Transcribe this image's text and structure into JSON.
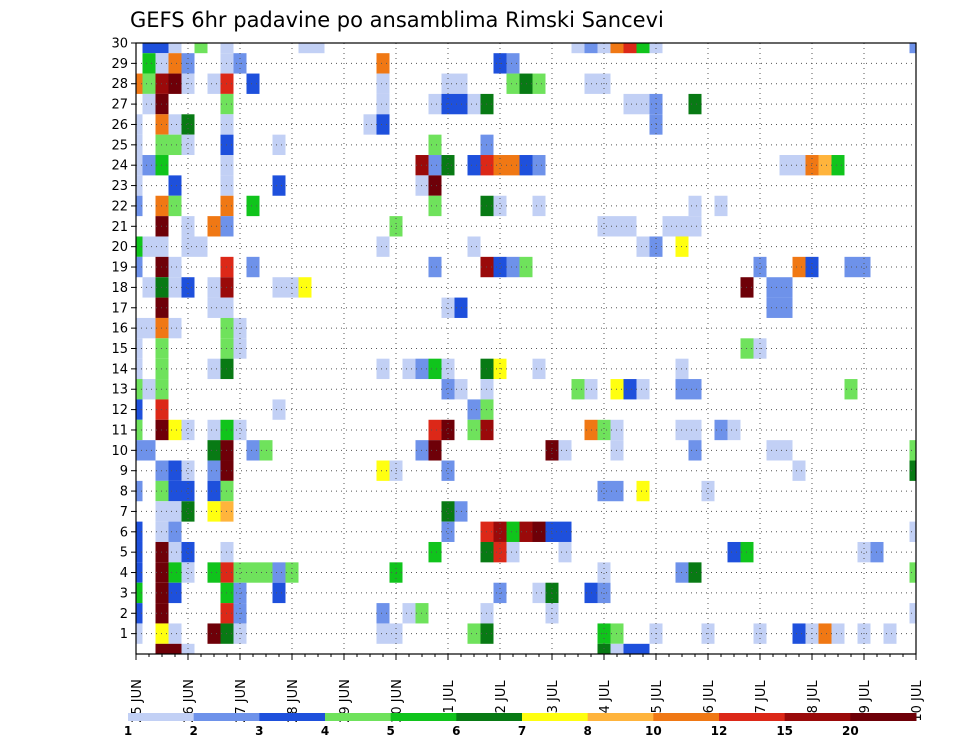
{
  "chart_data": {
    "type": "heatmap",
    "title": "GEFS 6hr padavine po ansamblima Rimski Sancevi",
    "xlabel": "",
    "ylabel": "",
    "x_tick_labels": [
      "25 JUN",
      "26 JUN",
      "27 JUN",
      "28 JUN",
      "29 JUN",
      "30 JUN",
      "01 JUL",
      "02 JUL",
      "03 JUL",
      "04 JUL",
      "05 JUL",
      "06 JUL",
      "07 JUL",
      "08 JUL",
      "09 JUL",
      "10 JUL"
    ],
    "x_step_hours": 6,
    "y_range": [
      1,
      30
    ],
    "y_tick_labels": [
      "1",
      "2",
      "3",
      "4",
      "5",
      "6",
      "7",
      "8",
      "9",
      "10",
      "11",
      "12",
      "13",
      "14",
      "15",
      "16",
      "17",
      "18",
      "19",
      "20",
      "21",
      "22",
      "23",
      "24",
      "25",
      "26",
      "27",
      "28",
      "29",
      "30"
    ],
    "grid": true,
    "colorbar": {
      "levels": [
        1,
        1.5,
        2,
        2.5,
        3,
        3.5,
        4,
        4.5,
        5,
        5.5,
        6,
        6.5,
        7,
        7.5,
        8,
        9,
        10,
        11,
        12,
        13.5,
        15,
        17.5,
        20,
        22.5
      ],
      "labels": [
        "1",
        "2",
        "3",
        "4",
        "5",
        "6",
        "7",
        "8",
        "10",
        "12",
        "15",
        "20"
      ],
      "colors": [
        "#c2d0f5",
        "#6e92ea",
        "#1e50dc",
        "#6fe25c",
        "#10c41c",
        "#087a14",
        "#ffff10",
        "#ffb43c",
        "#f07814",
        "#dc2818",
        "#9a0a0a",
        "#6e0008"
      ]
    },
    "cells": [
      [
        30,
        1,
        3
      ],
      [
        30,
        2,
        3
      ],
      [
        30,
        3,
        1
      ],
      [
        30,
        5,
        4
      ],
      [
        30,
        7,
        1
      ],
      [
        30,
        13,
        1
      ],
      [
        30,
        14,
        1
      ],
      [
        30,
        34,
        1
      ],
      [
        30,
        35,
        2
      ],
      [
        30,
        36,
        1
      ],
      [
        30,
        37,
        9
      ],
      [
        30,
        38,
        10
      ],
      [
        30,
        39,
        5
      ],
      [
        30,
        40,
        1
      ],
      [
        30,
        60,
        2
      ],
      [
        29,
        1,
        5
      ],
      [
        29,
        2,
        1
      ],
      [
        29,
        3,
        9
      ],
      [
        29,
        4,
        2
      ],
      [
        29,
        7,
        1
      ],
      [
        29,
        8,
        2
      ],
      [
        29,
        19,
        9
      ],
      [
        29,
        28,
        3
      ],
      [
        29,
        29,
        2
      ],
      [
        28,
        0,
        9
      ],
      [
        28,
        1,
        4
      ],
      [
        28,
        2,
        11
      ],
      [
        28,
        3,
        12
      ],
      [
        28,
        4,
        1
      ],
      [
        28,
        6,
        1
      ],
      [
        28,
        7,
        10
      ],
      [
        28,
        9,
        3
      ],
      [
        28,
        19,
        1
      ],
      [
        28,
        24,
        1
      ],
      [
        28,
        25,
        1
      ],
      [
        28,
        29,
        4
      ],
      [
        28,
        30,
        6
      ],
      [
        28,
        31,
        4
      ],
      [
        28,
        35,
        1
      ],
      [
        28,
        36,
        1
      ],
      [
        27,
        1,
        1
      ],
      [
        27,
        2,
        12
      ],
      [
        27,
        7,
        4
      ],
      [
        27,
        19,
        1
      ],
      [
        27,
        23,
        1
      ],
      [
        27,
        24,
        3
      ],
      [
        27,
        25,
        3
      ],
      [
        27,
        26,
        1
      ],
      [
        27,
        27,
        6
      ],
      [
        27,
        38,
        1
      ],
      [
        27,
        39,
        1
      ],
      [
        27,
        40,
        2
      ],
      [
        27,
        43,
        6
      ],
      [
        26,
        0,
        1
      ],
      [
        26,
        2,
        9
      ],
      [
        26,
        3,
        1
      ],
      [
        26,
        4,
        6
      ],
      [
        26,
        7,
        1
      ],
      [
        26,
        18,
        1
      ],
      [
        26,
        19,
        3
      ],
      [
        26,
        40,
        2
      ],
      [
        25,
        0,
        1
      ],
      [
        25,
        2,
        4
      ],
      [
        25,
        3,
        4
      ],
      [
        25,
        4,
        1
      ],
      [
        25,
        7,
        3
      ],
      [
        25,
        11,
        1
      ],
      [
        25,
        23,
        4
      ],
      [
        25,
        27,
        2
      ],
      [
        24,
        0,
        1
      ],
      [
        24,
        1,
        2
      ],
      [
        24,
        2,
        5
      ],
      [
        24,
        7,
        1
      ],
      [
        24,
        22,
        11
      ],
      [
        24,
        23,
        2
      ],
      [
        24,
        24,
        6
      ],
      [
        24,
        26,
        3
      ],
      [
        24,
        27,
        10
      ],
      [
        24,
        28,
        9
      ],
      [
        24,
        29,
        9
      ],
      [
        24,
        30,
        3
      ],
      [
        24,
        31,
        2
      ],
      [
        24,
        50,
        1
      ],
      [
        24,
        51,
        1
      ],
      [
        24,
        52,
        9
      ],
      [
        24,
        53,
        8
      ],
      [
        24,
        54,
        5
      ],
      [
        23,
        0,
        1
      ],
      [
        23,
        3,
        3
      ],
      [
        23,
        7,
        1
      ],
      [
        23,
        11,
        3
      ],
      [
        23,
        22,
        1
      ],
      [
        23,
        23,
        12
      ],
      [
        22,
        0,
        2
      ],
      [
        22,
        2,
        9
      ],
      [
        22,
        3,
        4
      ],
      [
        22,
        7,
        9
      ],
      [
        22,
        9,
        5
      ],
      [
        22,
        23,
        4
      ],
      [
        22,
        27,
        6
      ],
      [
        22,
        28,
        1
      ],
      [
        22,
        31,
        1
      ],
      [
        22,
        43,
        1
      ],
      [
        22,
        45,
        1
      ],
      [
        21,
        2,
        12
      ],
      [
        21,
        4,
        1
      ],
      [
        21,
        6,
        9
      ],
      [
        21,
        7,
        2
      ],
      [
        21,
        20,
        4
      ],
      [
        21,
        36,
        1
      ],
      [
        21,
        37,
        1
      ],
      [
        21,
        38,
        1
      ],
      [
        21,
        41,
        1
      ],
      [
        21,
        42,
        1
      ],
      [
        21,
        43,
        1
      ],
      [
        20,
        0,
        5
      ],
      [
        20,
        1,
        1
      ],
      [
        20,
        2,
        1
      ],
      [
        20,
        4,
        1
      ],
      [
        20,
        5,
        1
      ],
      [
        20,
        19,
        1
      ],
      [
        20,
        26,
        1
      ],
      [
        20,
        39,
        1
      ],
      [
        20,
        40,
        2
      ],
      [
        20,
        42,
        7
      ],
      [
        19,
        0,
        2
      ],
      [
        19,
        2,
        12
      ],
      [
        19,
        3,
        1
      ],
      [
        19,
        7,
        10
      ],
      [
        19,
        9,
        2
      ],
      [
        19,
        23,
        2
      ],
      [
        19,
        27,
        11
      ],
      [
        19,
        28,
        3
      ],
      [
        19,
        29,
        2
      ],
      [
        19,
        30,
        4
      ],
      [
        19,
        48,
        2
      ],
      [
        19,
        51,
        9
      ],
      [
        19,
        52,
        3
      ],
      [
        19,
        55,
        2
      ],
      [
        19,
        56,
        2
      ],
      [
        18,
        1,
        1
      ],
      [
        18,
        2,
        6
      ],
      [
        18,
        3,
        1
      ],
      [
        18,
        4,
        3
      ],
      [
        18,
        6,
        1
      ],
      [
        18,
        7,
        11
      ],
      [
        18,
        11,
        1
      ],
      [
        18,
        12,
        1
      ],
      [
        18,
        13,
        7
      ],
      [
        18,
        47,
        12
      ],
      [
        18,
        49,
        2
      ],
      [
        18,
        50,
        2
      ],
      [
        17,
        2,
        12
      ],
      [
        17,
        6,
        1
      ],
      [
        17,
        7,
        1
      ],
      [
        17,
        24,
        1
      ],
      [
        17,
        25,
        3
      ],
      [
        17,
        49,
        2
      ],
      [
        17,
        50,
        2
      ],
      [
        16,
        0,
        1
      ],
      [
        16,
        1,
        1
      ],
      [
        16,
        2,
        9
      ],
      [
        16,
        3,
        1
      ],
      [
        16,
        7,
        4
      ],
      [
        16,
        8,
        1
      ],
      [
        15,
        0,
        1
      ],
      [
        15,
        2,
        4
      ],
      [
        15,
        7,
        4
      ],
      [
        15,
        8,
        1
      ],
      [
        15,
        47,
        4
      ],
      [
        15,
        48,
        1
      ],
      [
        14,
        0,
        1
      ],
      [
        14,
        2,
        4
      ],
      [
        14,
        6,
        1
      ],
      [
        14,
        7,
        6
      ],
      [
        14,
        19,
        1
      ],
      [
        14,
        21,
        1
      ],
      [
        14,
        22,
        2
      ],
      [
        14,
        23,
        5
      ],
      [
        14,
        24,
        1
      ],
      [
        14,
        27,
        6
      ],
      [
        14,
        28,
        7
      ],
      [
        14,
        31,
        1
      ],
      [
        14,
        42,
        1
      ],
      [
        13,
        0,
        4
      ],
      [
        13,
        1,
        1
      ],
      [
        13,
        2,
        4
      ],
      [
        13,
        24,
        2
      ],
      [
        13,
        25,
        1
      ],
      [
        13,
        27,
        1
      ],
      [
        13,
        34,
        4
      ],
      [
        13,
        35,
        1
      ],
      [
        13,
        37,
        7
      ],
      [
        13,
        38,
        3
      ],
      [
        13,
        39,
        1
      ],
      [
        13,
        42,
        2
      ],
      [
        13,
        43,
        2
      ],
      [
        13,
        55,
        4
      ],
      [
        12,
        0,
        3
      ],
      [
        12,
        2,
        10
      ],
      [
        12,
        11,
        1
      ],
      [
        12,
        26,
        2
      ],
      [
        12,
        27,
        4
      ],
      [
        11,
        0,
        4
      ],
      [
        11,
        2,
        12
      ],
      [
        11,
        3,
        7
      ],
      [
        11,
        4,
        1
      ],
      [
        11,
        6,
        1
      ],
      [
        11,
        7,
        5
      ],
      [
        11,
        8,
        1
      ],
      [
        11,
        23,
        10
      ],
      [
        11,
        24,
        12
      ],
      [
        11,
        26,
        4
      ],
      [
        11,
        27,
        11
      ],
      [
        11,
        35,
        9
      ],
      [
        11,
        36,
        4
      ],
      [
        11,
        37,
        1
      ],
      [
        11,
        42,
        1
      ],
      [
        11,
        43,
        1
      ],
      [
        11,
        45,
        2
      ],
      [
        11,
        46,
        1
      ],
      [
        10,
        0,
        2
      ],
      [
        10,
        1,
        2
      ],
      [
        10,
        6,
        6
      ],
      [
        10,
        7,
        12
      ],
      [
        10,
        9,
        2
      ],
      [
        10,
        10,
        4
      ],
      [
        10,
        22,
        2
      ],
      [
        10,
        23,
        12
      ],
      [
        10,
        32,
        12
      ],
      [
        10,
        33,
        1
      ],
      [
        10,
        37,
        1
      ],
      [
        10,
        43,
        2
      ],
      [
        10,
        49,
        1
      ],
      [
        10,
        50,
        1
      ],
      [
        10,
        60,
        4
      ],
      [
        9,
        2,
        2
      ],
      [
        9,
        3,
        3
      ],
      [
        9,
        4,
        1
      ],
      [
        9,
        6,
        2
      ],
      [
        9,
        7,
        12
      ],
      [
        9,
        19,
        7
      ],
      [
        9,
        20,
        1
      ],
      [
        9,
        24,
        2
      ],
      [
        9,
        51,
        1
      ],
      [
        9,
        60,
        6
      ],
      [
        8,
        0,
        2
      ],
      [
        8,
        2,
        4
      ],
      [
        8,
        3,
        3
      ],
      [
        8,
        4,
        3
      ],
      [
        8,
        6,
        3
      ],
      [
        8,
        7,
        4
      ],
      [
        8,
        36,
        2
      ],
      [
        8,
        37,
        2
      ],
      [
        8,
        39,
        7
      ],
      [
        8,
        44,
        1
      ],
      [
        7,
        2,
        1
      ],
      [
        7,
        3,
        1
      ],
      [
        7,
        4,
        6
      ],
      [
        7,
        6,
        7
      ],
      [
        7,
        7,
        8
      ],
      [
        7,
        24,
        6
      ],
      [
        7,
        25,
        2
      ],
      [
        6,
        0,
        3
      ],
      [
        6,
        2,
        1
      ],
      [
        6,
        3,
        2
      ],
      [
        6,
        24,
        2
      ],
      [
        6,
        27,
        10
      ],
      [
        6,
        28,
        11
      ],
      [
        6,
        29,
        5
      ],
      [
        6,
        30,
        11
      ],
      [
        6,
        31,
        12
      ],
      [
        6,
        32,
        3
      ],
      [
        6,
        33,
        3
      ],
      [
        6,
        60,
        1
      ],
      [
        5,
        0,
        3
      ],
      [
        5,
        2,
        12
      ],
      [
        5,
        3,
        1
      ],
      [
        5,
        4,
        3
      ],
      [
        5,
        7,
        1
      ],
      [
        5,
        23,
        5
      ],
      [
        5,
        27,
        6
      ],
      [
        5,
        28,
        10
      ],
      [
        5,
        29,
        1
      ],
      [
        5,
        33,
        1
      ],
      [
        5,
        46,
        3
      ],
      [
        5,
        47,
        5
      ],
      [
        5,
        56,
        1
      ],
      [
        5,
        57,
        2
      ],
      [
        4,
        0,
        3
      ],
      [
        4,
        2,
        12
      ],
      [
        4,
        3,
        5
      ],
      [
        4,
        4,
        1
      ],
      [
        4,
        6,
        5
      ],
      [
        4,
        7,
        10
      ],
      [
        4,
        8,
        4
      ],
      [
        4,
        9,
        4
      ],
      [
        4,
        10,
        4
      ],
      [
        4,
        11,
        2
      ],
      [
        4,
        12,
        4
      ],
      [
        4,
        20,
        5
      ],
      [
        4,
        36,
        1
      ],
      [
        4,
        42,
        2
      ],
      [
        4,
        43,
        6
      ],
      [
        4,
        60,
        4
      ],
      [
        3,
        0,
        5
      ],
      [
        3,
        2,
        12
      ],
      [
        3,
        3,
        3
      ],
      [
        3,
        7,
        5
      ],
      [
        3,
        8,
        2
      ],
      [
        3,
        11,
        3
      ],
      [
        3,
        28,
        2
      ],
      [
        3,
        31,
        1
      ],
      [
        3,
        32,
        6
      ],
      [
        3,
        35,
        3
      ],
      [
        3,
        36,
        2
      ],
      [
        2,
        0,
        3
      ],
      [
        2,
        2,
        12
      ],
      [
        2,
        7,
        10
      ],
      [
        2,
        8,
        2
      ],
      [
        2,
        19,
        2
      ],
      [
        2,
        21,
        1
      ],
      [
        2,
        22,
        4
      ],
      [
        2,
        27,
        1
      ],
      [
        2,
        32,
        1
      ],
      [
        2,
        60,
        1
      ],
      [
        1,
        0,
        1
      ],
      [
        1,
        2,
        7
      ],
      [
        1,
        3,
        1
      ],
      [
        1,
        6,
        12
      ],
      [
        1,
        7,
        6
      ],
      [
        1,
        8,
        1
      ],
      [
        1,
        19,
        1
      ],
      [
        1,
        20,
        1
      ],
      [
        1,
        26,
        4
      ],
      [
        1,
        27,
        6
      ],
      [
        1,
        36,
        5
      ],
      [
        1,
        37,
        4
      ],
      [
        1,
        40,
        1
      ],
      [
        1,
        44,
        1
      ],
      [
        1,
        48,
        1
      ],
      [
        1,
        51,
        3
      ],
      [
        1,
        52,
        1
      ],
      [
        1,
        53,
        9
      ],
      [
        1,
        54,
        1
      ],
      [
        1,
        56,
        1
      ],
      [
        1,
        58,
        1
      ],
      [
        0,
        2,
        12
      ],
      [
        0,
        3,
        12
      ],
      [
        0,
        4,
        1
      ],
      [
        0,
        36,
        6
      ],
      [
        0,
        37,
        1
      ],
      [
        0,
        38,
        3
      ],
      [
        0,
        39,
        3
      ]
    ]
  }
}
